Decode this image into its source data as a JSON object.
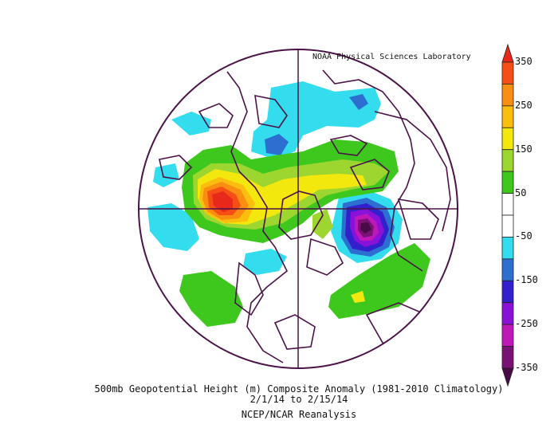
{
  "credit": "NOAA Physical Sciences Laboratory",
  "title": "500mb Geopotential Height (m) Composite Anomaly (1981-2010 Climatology)",
  "dates": "2/1/14  to 2/15/14",
  "dataset": "NCEP/NCAR Reanalysis",
  "colorbar": {
    "ticks": [
      "350",
      "250",
      "150",
      "50",
      "-50",
      "-150",
      "-250",
      "-350"
    ],
    "levels": [
      {
        "range": "> 350",
        "color": "#e8281a"
      },
      {
        "range": "300 to 350",
        "color": "#f54f16"
      },
      {
        "range": "250 to 300",
        "color": "#f98e10"
      },
      {
        "range": "200 to 250",
        "color": "#fbbe0f"
      },
      {
        "range": "150 to 200",
        "color": "#f2e80d"
      },
      {
        "range": "100 to 150",
        "color": "#9ed630"
      },
      {
        "range": "50 to 100",
        "color": "#3ec81e"
      },
      {
        "range": "0 to 50",
        "color": "#ffffff"
      },
      {
        "range": "-50 to 0",
        "color": "#ffffff"
      },
      {
        "range": "-100 to -50",
        "color": "#33ddee"
      },
      {
        "range": "-150 to -100",
        "color": "#2c6fd0"
      },
      {
        "range": "-200 to -150",
        "color": "#3220cc"
      },
      {
        "range": "-250 to -200",
        "color": "#8a11d8"
      },
      {
        "range": "-300 to -250",
        "color": "#c018b8"
      },
      {
        "range": "-350 to -300",
        "color": "#7a1276"
      },
      {
        "range": "< -350",
        "color": "#4a0a48"
      }
    ]
  },
  "map": {
    "projection": "north polar stereographic",
    "coastline_color": "#4b1248",
    "features": [
      {
        "name": "positive-anomaly-north-pacific",
        "peak_level": "> 350"
      },
      {
        "name": "negative-anomaly-siberia",
        "peak_level": "-350 to -300"
      },
      {
        "name": "positive-anomaly-europe",
        "peak_level": "100 to 150"
      },
      {
        "name": "negative-anomaly-eastern-north-america",
        "peak_level": "-100 to -50"
      }
    ]
  }
}
